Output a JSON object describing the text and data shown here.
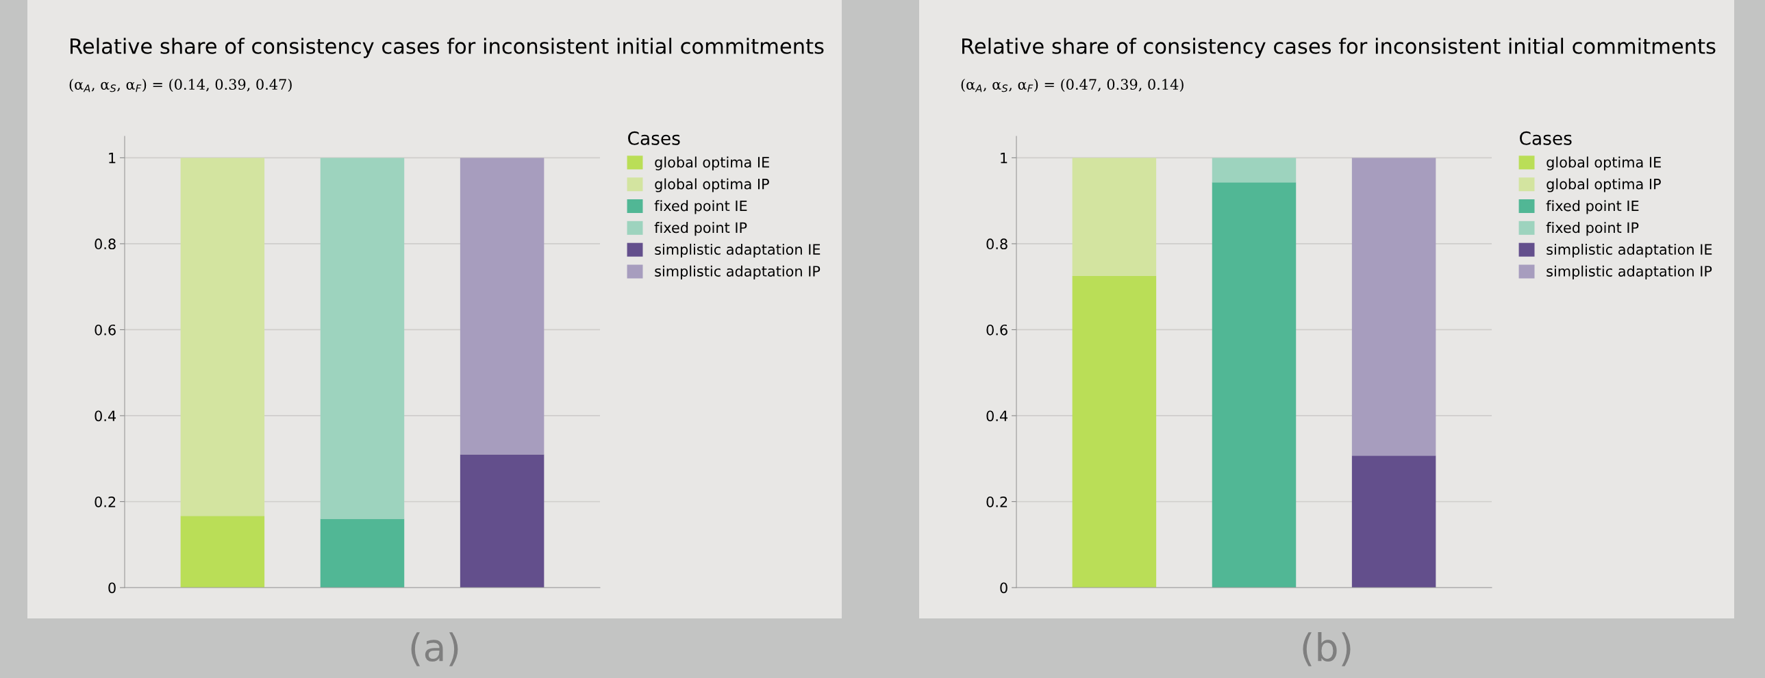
{
  "chart_data": [
    {
      "type": "bar",
      "title": "Relative share of consistency cases for inconsistent initial commitments",
      "subtitle": "(α$_{A}$, α$_{S}$, α$_{F}$) = (0.14, 0.39, 0.47)",
      "legend_title": "Cases",
      "annotations": [
        "(a)"
      ],
      "categories": [
        null,
        null,
        null
      ],
      "stacked": true,
      "ylim": [
        0,
        1.05
      ],
      "yticks": [
        0,
        0.2,
        0.4,
        0.6,
        0.8,
        1
      ],
      "grid": "y",
      "legend": "right",
      "series": [
        {
          "name": "global optima IE",
          "color": "#bade57",
          "values": [
            0.167,
            0,
            0
          ]
        },
        {
          "name": "global optima IP",
          "color": "#d3e4a0",
          "values": [
            0.833,
            0,
            0
          ]
        },
        {
          "name": "fixed point IE",
          "color": "#51b795",
          "values": [
            0,
            0.16,
            0
          ]
        },
        {
          "name": "fixed point IP",
          "color": "#9dd3be",
          "values": [
            0,
            0.84,
            0
          ]
        },
        {
          "name": "simplistic adaptation IE",
          "color": "#634f8c",
          "values": [
            0,
            0,
            0.31
          ]
        },
        {
          "name": "simplistic adaptation IP",
          "color": "#a79dbe",
          "values": [
            0,
            0,
            0.69
          ]
        }
      ]
    },
    {
      "type": "bar",
      "title": "Relative share of consistency cases for inconsistent initial commitments",
      "subtitle": "(α$_{A}$, α$_{S}$, α$_{F}$) = (0.47, 0.39, 0.14)",
      "legend_title": "Cases",
      "annotations": [
        "(b)"
      ],
      "categories": [
        null,
        null,
        null
      ],
      "stacked": true,
      "ylim": [
        0,
        1.05
      ],
      "yticks": [
        0,
        0.2,
        0.4,
        0.6,
        0.8,
        1
      ],
      "grid": "y",
      "legend": "right",
      "series": [
        {
          "name": "global optima IE",
          "color": "#bade57",
          "values": [
            0.725,
            0,
            0
          ]
        },
        {
          "name": "global optima IP",
          "color": "#d3e4a0",
          "values": [
            0.275,
            0,
            0
          ]
        },
        {
          "name": "fixed point IE",
          "color": "#51b795",
          "values": [
            0,
            0.943,
            0
          ]
        },
        {
          "name": "fixed point IP",
          "color": "#9dd3be",
          "values": [
            0,
            0.057,
            0
          ]
        },
        {
          "name": "simplistic adaptation IE",
          "color": "#634f8c",
          "values": [
            0,
            0,
            0.307
          ]
        },
        {
          "name": "simplistic adaptation IP",
          "color": "#a79dbe",
          "values": [
            0,
            0,
            0.693
          ]
        }
      ]
    }
  ]
}
